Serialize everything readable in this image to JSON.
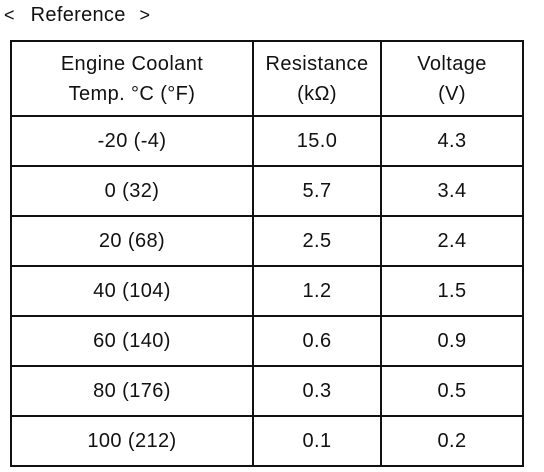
{
  "heading": {
    "open_bracket": "<",
    "title": "Reference",
    "close_bracket": ">"
  },
  "table": {
    "headers": [
      {
        "line1": "Engine Coolant",
        "line2": "Temp. °C (°F)"
      },
      {
        "line1": "Resistance",
        "line2": "(kΩ)"
      },
      {
        "line1": "Voltage",
        "line2": "(V)"
      }
    ],
    "rows": [
      [
        "-20 (-4)",
        "15.0",
        "4.3"
      ],
      [
        "0 (32)",
        "5.7",
        "3.4"
      ],
      [
        "20 (68)",
        "2.5",
        "2.4"
      ],
      [
        "40 (104)",
        "1.2",
        "1.5"
      ],
      [
        "60 (140)",
        "0.6",
        "0.9"
      ],
      [
        "80 (176)",
        "0.3",
        "0.5"
      ],
      [
        "100 (212)",
        "0.1",
        "0.2"
      ]
    ]
  }
}
